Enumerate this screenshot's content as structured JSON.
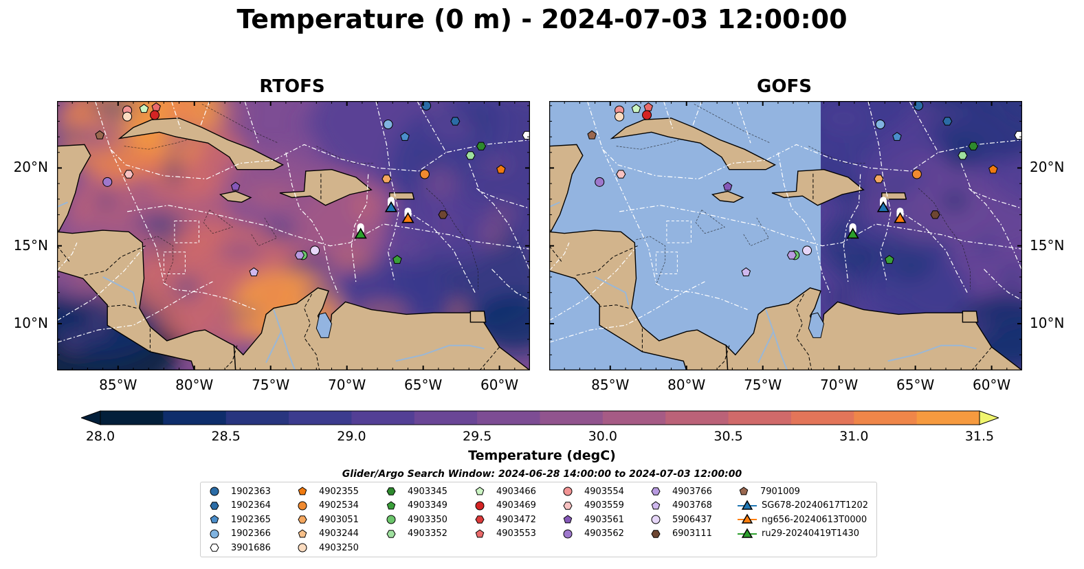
{
  "title": "Temperature (0 m) - 2024-07-03 12:00:00",
  "panels": [
    {
      "name": "RTOFS",
      "mask_from_lon": null
    },
    {
      "name": "GOFS",
      "mask_from_lon": -71.2
    }
  ],
  "map_extent": {
    "lon": [
      -89,
      -58
    ],
    "lat": [
      7,
      24.3
    ]
  },
  "x_ticks": [
    {
      "lon": -85,
      "label": "85°W"
    },
    {
      "lon": -80,
      "label": "80°W"
    },
    {
      "lon": -75,
      "label": "75°W"
    },
    {
      "lon": -70,
      "label": "70°W"
    },
    {
      "lon": -65,
      "label": "65°W"
    },
    {
      "lon": -60,
      "label": "60°W"
    }
  ],
  "y_ticks": [
    {
      "lat": 20,
      "label": "20°N"
    },
    {
      "lat": 15,
      "label": "15°N"
    },
    {
      "lat": 10,
      "label": "10°N"
    }
  ],
  "colorbar": {
    "label": "Temperature (degC)",
    "min": 28.0,
    "max": 31.5,
    "step": 0.25,
    "extend": "both",
    "ticks": [
      "28.0",
      "28.5",
      "29.0",
      "29.5",
      "30.0",
      "30.5",
      "31.0",
      "31.5"
    ],
    "colors": [
      "#031f3a",
      "#0e2d6b",
      "#28357f",
      "#3c3b8e",
      "#533f95",
      "#6a4696",
      "#7d4d94",
      "#91548e",
      "#a65b85",
      "#bb6278",
      "#d06a6a",
      "#e37559",
      "#ef8649",
      "#f69a3f",
      "#f8b13c",
      "#f6cb44",
      "#eef06e"
    ],
    "under_color": "#031f3a",
    "over_color": "#f0f56e"
  },
  "colors": {
    "land": "#d2b48c",
    "ocean_mask": "#93b4e0",
    "river": "#9ab7d6",
    "eez": "#ffffff",
    "coast": "#000000"
  },
  "search_window": "Glider/Argo Search Window: 2024-06-28 14:00:00 to 2024-07-03 12:00:00",
  "legend": [
    {
      "id": "1902363",
      "marker": "circle",
      "color": "#2b6ca6"
    },
    {
      "id": "1902364",
      "marker": "hexagon",
      "color": "#2b6ca6"
    },
    {
      "id": "1902365",
      "marker": "pentagon",
      "color": "#4b8ecb"
    },
    {
      "id": "1902366",
      "marker": "circle",
      "color": "#80b3e0"
    },
    {
      "id": "3901686",
      "marker": "hexagon",
      "color": "#ffffff"
    },
    {
      "id": "4902355",
      "marker": "pentagon",
      "color": "#f07a10"
    },
    {
      "id": "4902534",
      "marker": "circle",
      "color": "#f08a30"
    },
    {
      "id": "4903051",
      "marker": "hexagon",
      "color": "#f5a860"
    },
    {
      "id": "4903244",
      "marker": "pentagon",
      "color": "#f7c08a"
    },
    {
      "id": "4903250",
      "marker": "circle",
      "color": "#fbdcc0"
    },
    {
      "id": "4903345",
      "marker": "hexagon",
      "color": "#2e8a2e"
    },
    {
      "id": "4903349",
      "marker": "pentagon",
      "color": "#3aa03a"
    },
    {
      "id": "4903350",
      "marker": "circle",
      "color": "#6cc66c"
    },
    {
      "id": "4903352",
      "marker": "hexagon",
      "color": "#9fe09f"
    },
    {
      "id": "4903466",
      "marker": "pentagon",
      "color": "#ccf5c4"
    },
    {
      "id": "4903469",
      "marker": "circle",
      "color": "#d42424"
    },
    {
      "id": "4903472",
      "marker": "hexagon",
      "color": "#dc3a3a"
    },
    {
      "id": "4903553",
      "marker": "pentagon",
      "color": "#ea6a6a"
    },
    {
      "id": "4903554",
      "marker": "circle",
      "color": "#f29494"
    },
    {
      "id": "4903559",
      "marker": "hexagon",
      "color": "#f8c2c2"
    },
    {
      "id": "4903561",
      "marker": "pentagon",
      "color": "#8558b8"
    },
    {
      "id": "4903562",
      "marker": "circle",
      "color": "#9e78cc"
    },
    {
      "id": "4903766",
      "marker": "hexagon",
      "color": "#b89ae0"
    },
    {
      "id": "4903768",
      "marker": "pentagon",
      "color": "#cfb8ee"
    },
    {
      "id": "5906437",
      "marker": "circle",
      "color": "#e6d6f8"
    },
    {
      "id": "6903111",
      "marker": "hexagon",
      "color": "#6e4632"
    },
    {
      "id": "7901009",
      "marker": "pentagon",
      "color": "#9a6850"
    },
    {
      "id": "SG678-20240617T1202",
      "marker": "triangle",
      "color": "#1f77b4",
      "line": true
    },
    {
      "id": "ng656-20240613T0000",
      "marker": "triangle",
      "color": "#ff7f0e",
      "line": true
    },
    {
      "id": "ru29-20240419T1430",
      "marker": "triangle",
      "color": "#2ca02c",
      "line": true
    }
  ],
  "floats": [
    {
      "lon": -84.4,
      "lat": 23.7,
      "marker": "circle",
      "color": "#f29494"
    },
    {
      "lon": -84.4,
      "lat": 23.3,
      "marker": "circle",
      "color": "#fbdcc0"
    },
    {
      "lon": -83.3,
      "lat": 23.8,
      "marker": "pentagon",
      "color": "#ccf5c4"
    },
    {
      "lon": -82.5,
      "lat": 23.9,
      "marker": "pentagon",
      "color": "#ea6a6a"
    },
    {
      "lon": -82.6,
      "lat": 23.4,
      "marker": "circle",
      "color": "#d42424"
    },
    {
      "lon": -64.8,
      "lat": 24.0,
      "marker": "circle",
      "color": "#2b6ca6"
    },
    {
      "lon": -86.2,
      "lat": 22.1,
      "marker": "pentagon",
      "color": "#9a6850"
    },
    {
      "lon": -67.3,
      "lat": 22.8,
      "marker": "circle",
      "color": "#80b3e0"
    },
    {
      "lon": -66.2,
      "lat": 22.0,
      "marker": "pentagon",
      "color": "#4b8ecb"
    },
    {
      "lon": -62.9,
      "lat": 23.0,
      "marker": "hexagon",
      "color": "#2b6ca6"
    },
    {
      "lon": -58.2,
      "lat": 22.1,
      "marker": "hexagon",
      "color": "#ffffff"
    },
    {
      "lon": -61.2,
      "lat": 21.4,
      "marker": "hexagon",
      "color": "#2e8a2e"
    },
    {
      "lon": -61.9,
      "lat": 20.8,
      "marker": "hexagon",
      "color": "#9fe09f"
    },
    {
      "lon": -59.9,
      "lat": 19.9,
      "marker": "pentagon",
      "color": "#f07a10"
    },
    {
      "lon": -64.9,
      "lat": 19.6,
      "marker": "circle",
      "color": "#f08a30"
    },
    {
      "lon": -67.4,
      "lat": 19.3,
      "marker": "hexagon",
      "color": "#f5a860"
    },
    {
      "lon": -85.7,
      "lat": 19.1,
      "marker": "circle",
      "color": "#9e78cc"
    },
    {
      "lon": -84.3,
      "lat": 19.6,
      "marker": "hexagon",
      "color": "#f8c2c2"
    },
    {
      "lon": -77.3,
      "lat": 18.8,
      "marker": "pentagon",
      "color": "#8558b8"
    },
    {
      "lon": -63.7,
      "lat": 17.0,
      "marker": "hexagon",
      "color": "#6e4632"
    },
    {
      "lon": -72.1,
      "lat": 14.7,
      "marker": "circle",
      "color": "#e6d6f8"
    },
    {
      "lon": -72.9,
      "lat": 14.4,
      "marker": "circle",
      "color": "#6cc66c"
    },
    {
      "lon": -73.1,
      "lat": 14.4,
      "marker": "hexagon",
      "color": "#b89ae0"
    },
    {
      "lon": -76.1,
      "lat": 13.3,
      "marker": "pentagon",
      "color": "#cfb8ee"
    },
    {
      "lon": -66.7,
      "lat": 14.1,
      "marker": "pentagon",
      "color": "#3aa03a"
    }
  ],
  "gliders": [
    {
      "lon": -67.1,
      "lat": 17.4,
      "color": "#1f77b4"
    },
    {
      "lon": -66.0,
      "lat": 16.7,
      "color": "#ff7f0e"
    },
    {
      "lon": -69.1,
      "lat": 15.7,
      "color": "#2ca02c"
    }
  ]
}
